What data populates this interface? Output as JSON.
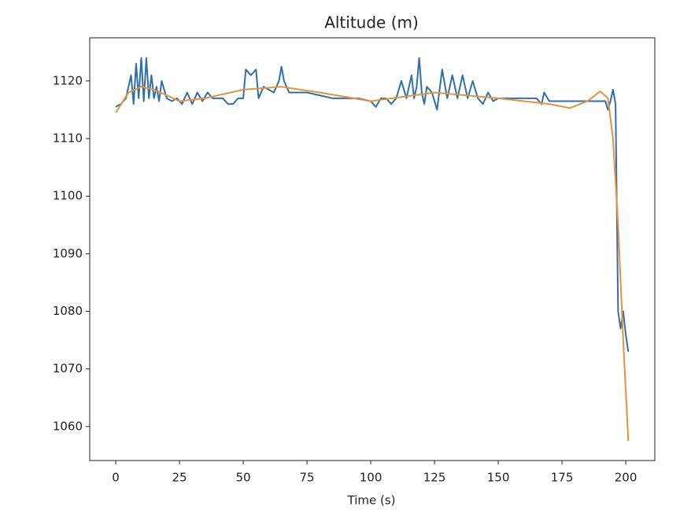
{
  "chart_data": {
    "type": "line",
    "title": "Altitude (m)",
    "x_label": "Time (s)",
    "xlim": [
      -10.2,
      211.4
    ],
    "ylim": [
      1054.1,
      1127.5
    ],
    "xticks": [
      0,
      25,
      50,
      75,
      100,
      125,
      150,
      175,
      200
    ],
    "yticks": [
      1060,
      1070,
      1080,
      1090,
      1100,
      1110,
      1120
    ],
    "grid": false,
    "series": [
      {
        "color": "#2f6fad",
        "x": [
          0,
          2,
          4,
          5,
          6,
          7,
          8,
          9,
          10,
          11,
          12,
          13,
          14,
          15,
          16,
          17,
          18,
          20,
          22,
          24,
          26,
          28,
          30,
          32,
          34,
          36,
          38,
          40,
          42,
          44,
          46,
          48,
          50,
          51,
          53,
          55,
          56,
          58,
          60,
          62,
          64,
          65,
          66,
          68,
          70,
          75,
          80,
          85,
          90,
          95,
          100,
          102,
          104,
          106,
          108,
          110,
          112,
          114,
          116,
          117,
          118,
          119,
          120,
          121,
          122,
          124,
          126,
          128,
          130,
          132,
          134,
          136,
          138,
          140,
          142,
          144,
          146,
          148,
          150,
          155,
          160,
          165,
          167,
          168,
          170,
          175,
          180,
          185,
          190,
          192,
          193,
          194,
          195,
          196,
          197,
          198,
          199,
          200,
          201
        ],
        "values": [
          1115.5,
          1116,
          1117,
          1119,
          1121,
          1116,
          1123,
          1117,
          1124,
          1116.5,
          1124,
          1117,
          1121,
          1117,
          1119,
          1116.5,
          1120,
          1117,
          1116.5,
          1117,
          1116,
          1118,
          1116,
          1118,
          1116.5,
          1118,
          1117,
          1117,
          1117,
          1116,
          1116,
          1117,
          1117,
          1122,
          1121,
          1122,
          1117,
          1119,
          1118.5,
          1118,
          1120,
          1122.5,
          1120,
          1118,
          1118,
          1118,
          1117.5,
          1117,
          1117,
          1117,
          1116.5,
          1115.5,
          1117,
          1117,
          1116,
          1117,
          1120,
          1117,
          1121,
          1117,
          1119,
          1124,
          1118,
          1116,
          1119,
          1118,
          1115,
          1122,
          1117,
          1121,
          1117,
          1121,
          1117,
          1120,
          1117,
          1116,
          1118,
          1116.5,
          1117,
          1117,
          1117,
          1117,
          1116,
          1118,
          1116.5,
          1116.5,
          1116.5,
          1116.5,
          1116.5,
          1116.5,
          1115,
          1116.5,
          1118.5,
          1116,
          1080,
          1077,
          1080,
          1076,
          1073
        ]
      },
      {
        "color": "#e8913b",
        "x": [
          0,
          5,
          10,
          15,
          25,
          35,
          50,
          65,
          80,
          100,
          125,
          150,
          170,
          178,
          185,
          190,
          193,
          195,
          197,
          199,
          201
        ],
        "values": [
          1114.5,
          1118,
          1119,
          1118.5,
          1116.5,
          1117,
          1118.5,
          1119,
          1118,
          1116.5,
          1118,
          1117,
          1116,
          1115.3,
          1116.5,
          1118.2,
          1117,
          1110,
          1095,
          1075,
          1057.5
        ]
      }
    ]
  }
}
